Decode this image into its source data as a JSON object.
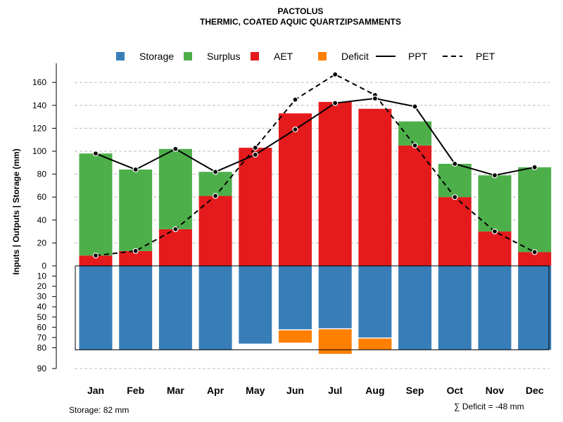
{
  "title": "PACTOLUS",
  "subtitle": "THERMIC, COATED AQUIC QUARTZIPSAMMENTS",
  "footer": {
    "storage_label": "Storage: 82 mm",
    "deficit_label": "∑ Deficit = -48 mm"
  },
  "chart_data": {
    "type": "bar",
    "title": "PACTOLUS",
    "subtitle": "THERMIC, COATED AQUIC QUARTZIPSAMMENTS",
    "ylabel": "Inputs | Outputs | Storage    (mm)",
    "categories": [
      "Jan",
      "Feb",
      "Mar",
      "Apr",
      "May",
      "Jun",
      "Jul",
      "Aug",
      "Sep",
      "Oct",
      "Nov",
      "Dec"
    ],
    "upper_ylim": [
      0,
      170
    ],
    "upper_ticks": [
      0,
      20,
      40,
      60,
      80,
      100,
      120,
      140,
      160
    ],
    "lower_ylim": [
      0,
      90
    ],
    "lower_ticks": [
      0,
      10,
      20,
      30,
      40,
      50,
      60,
      70,
      80,
      90
    ],
    "grid": "horizontal dashed",
    "legend": [
      "Storage",
      "Surplus",
      "AET",
      "Deficit",
      "PPT",
      "PET"
    ],
    "colors": {
      "storage": "#377EB8",
      "surplus": "#4DAF4A",
      "aet": "#E41A1C",
      "deficit": "#FF7F00",
      "line": "#000000"
    },
    "series": [
      {
        "name": "AET",
        "values": [
          9,
          13,
          32,
          61,
          103,
          133,
          143,
          137,
          105,
          60,
          30,
          12
        ]
      },
      {
        "name": "Surplus",
        "values": [
          89,
          71,
          70,
          21,
          0,
          0,
          0,
          0,
          21,
          29,
          49,
          74
        ]
      },
      {
        "name": "PPT",
        "values": [
          98,
          84,
          102,
          82,
          97,
          119,
          142,
          146,
          139,
          89,
          79,
          86
        ]
      },
      {
        "name": "PET",
        "values": [
          9,
          13,
          32,
          61,
          103,
          145,
          167,
          149,
          105,
          60,
          30,
          12
        ]
      },
      {
        "name": "Storage",
        "values": [
          82,
          82,
          82,
          82,
          76,
          62,
          61,
          70,
          82,
          82,
          82,
          82
        ]
      },
      {
        "name": "Deficit",
        "values": [
          0,
          0,
          0,
          0,
          0,
          12,
          24,
          11,
          0,
          0,
          0,
          0
        ]
      }
    ],
    "storage_capacity": 82,
    "total_deficit": -48
  }
}
